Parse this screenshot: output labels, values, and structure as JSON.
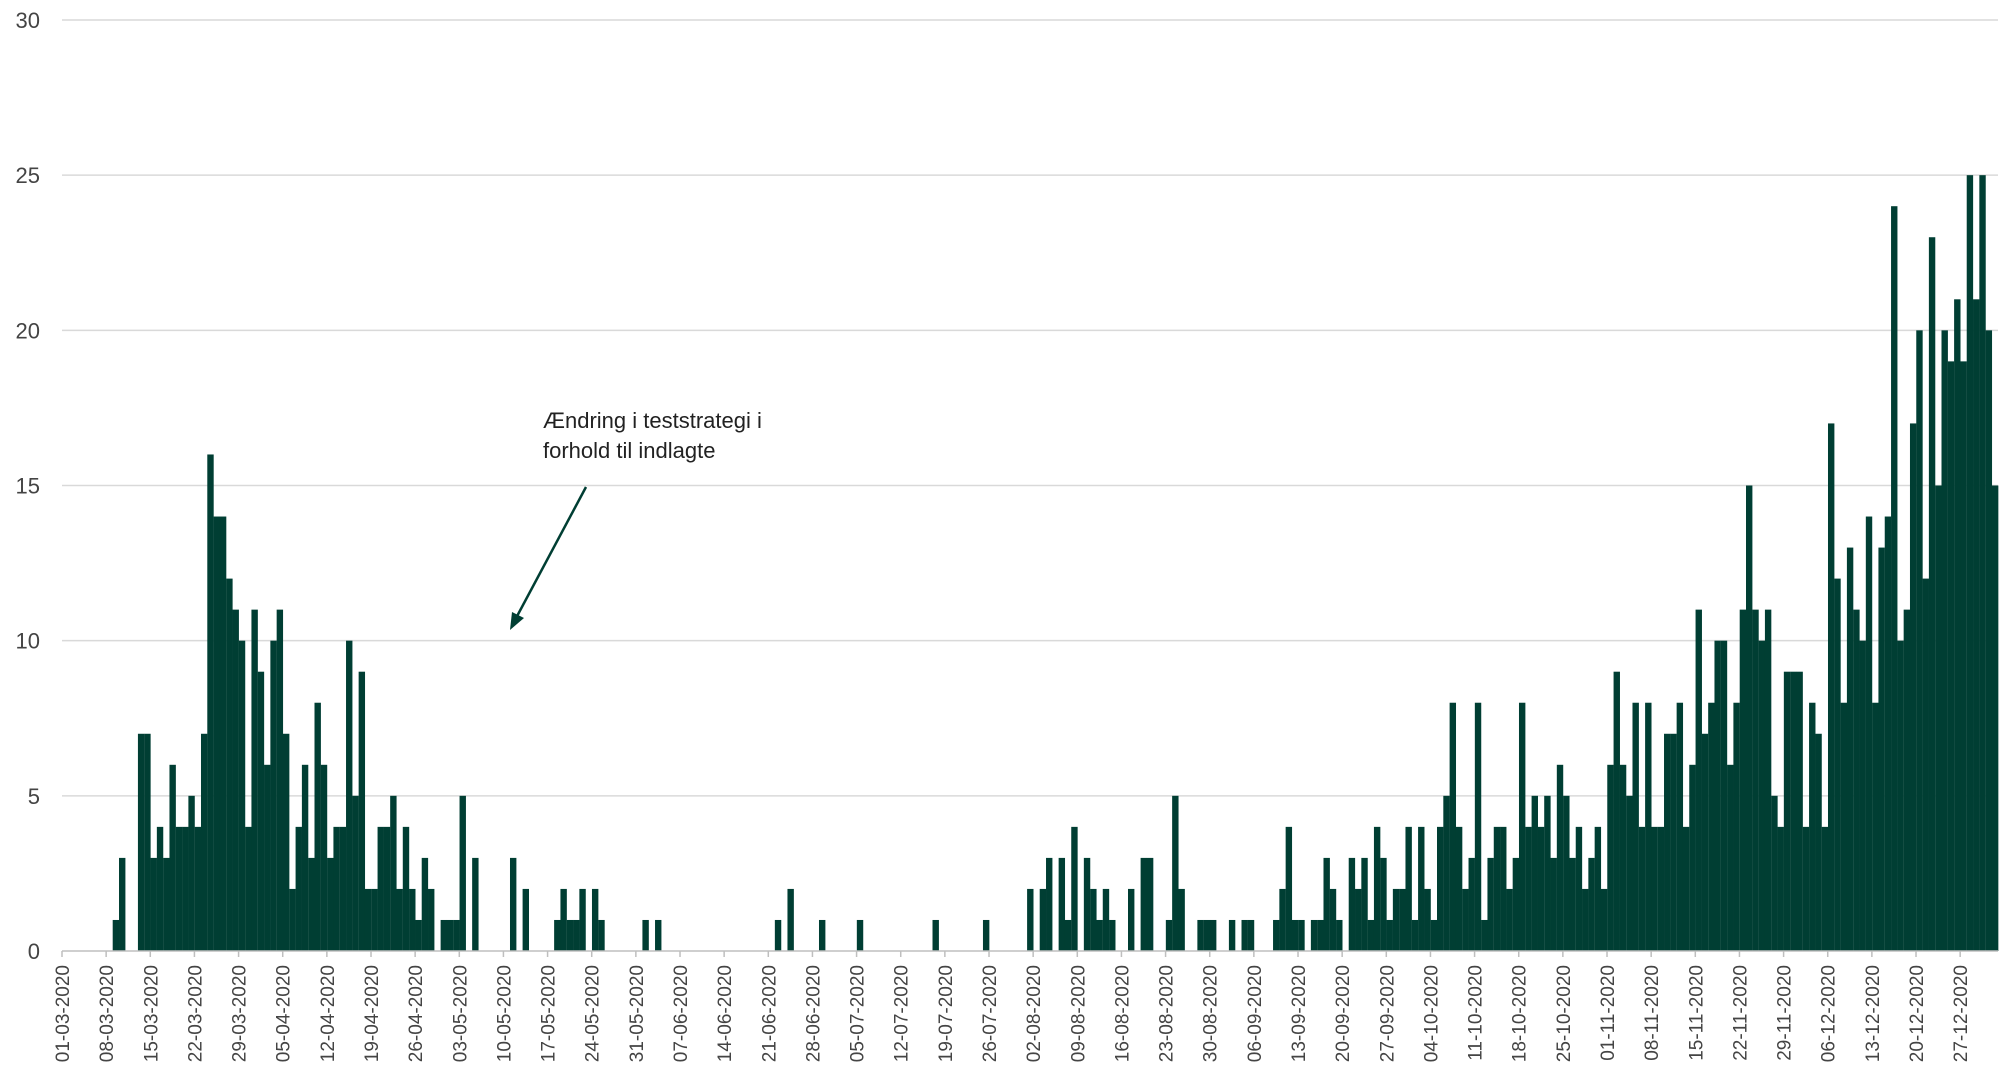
{
  "chart_data": {
    "type": "bar",
    "title": "",
    "xlabel": "",
    "ylabel": "",
    "ylim": [
      0,
      30
    ],
    "yticks": [
      "0",
      "5",
      "10",
      "15",
      "20",
      "25",
      "30"
    ],
    "grid": true,
    "legend": "none",
    "colors": {
      "bar": "#003e33",
      "grid": "#d9d9d9",
      "axis": "#bfbfbf",
      "text": "#444444"
    },
    "annotation": {
      "lines": [
        "Ændring i teststrategi i",
        "forhold til indlagte"
      ],
      "points_to": "10-05-2020"
    },
    "start_date": "01-03-2020",
    "xtick_labels": [
      "01-03-2020",
      "08-03-2020",
      "15-03-2020",
      "22-03-2020",
      "29-03-2020",
      "05-04-2020",
      "12-04-2020",
      "19-04-2020",
      "26-04-2020",
      "03-05-2020",
      "10-05-2020",
      "17-05-2020",
      "24-05-2020",
      "31-05-2020",
      "07-06-2020",
      "14-06-2020",
      "21-06-2020",
      "28-06-2020",
      "05-07-2020",
      "12-07-2020",
      "19-07-2020",
      "26-07-2020",
      "02-08-2020",
      "09-08-2020",
      "16-08-2020",
      "23-08-2020",
      "30-08-2020",
      "06-09-2020",
      "13-09-2020",
      "20-09-2020",
      "27-09-2020",
      "04-10-2020",
      "11-10-2020",
      "18-10-2020",
      "25-10-2020",
      "01-11-2020",
      "08-11-2020",
      "15-11-2020",
      "22-11-2020",
      "29-11-2020",
      "06-12-2020",
      "13-12-2020",
      "20-12-2020",
      "27-12-2020"
    ],
    "values": [
      0,
      0,
      0,
      0,
      0,
      0,
      0,
      0,
      1,
      3,
      0,
      0,
      7,
      7,
      3,
      4,
      3,
      6,
      4,
      4,
      5,
      4,
      7,
      16,
      14,
      14,
      12,
      11,
      10,
      4,
      11,
      9,
      6,
      10,
      11,
      7,
      2,
      4,
      6,
      3,
      8,
      6,
      3,
      4,
      4,
      10,
      5,
      9,
      2,
      2,
      4,
      4,
      5,
      2,
      4,
      2,
      1,
      3,
      2,
      0,
      1,
      1,
      1,
      5,
      0,
      3,
      0,
      0,
      0,
      0,
      0,
      3,
      0,
      2,
      0,
      0,
      0,
      0,
      1,
      2,
      1,
      1,
      2,
      0,
      2,
      1,
      0,
      0,
      0,
      0,
      0,
      0,
      1,
      0,
      1,
      0,
      0,
      0,
      0,
      0,
      0,
      0,
      0,
      0,
      0,
      0,
      0,
      0,
      0,
      0,
      0,
      0,
      0,
      1,
      0,
      2,
      0,
      0,
      0,
      0,
      1,
      0,
      0,
      0,
      0,
      0,
      1,
      0,
      0,
      0,
      0,
      0,
      0,
      0,
      0,
      0,
      0,
      0,
      1,
      0,
      0,
      0,
      0,
      0,
      0,
      0,
      1,
      0,
      0,
      0,
      0,
      0,
      0,
      2,
      0,
      2,
      3,
      0,
      3,
      1,
      4,
      0,
      3,
      2,
      1,
      2,
      1,
      0,
      0,
      2,
      0,
      3,
      3,
      0,
      0,
      1,
      5,
      2,
      0,
      0,
      1,
      1,
      1,
      0,
      0,
      1,
      0,
      1,
      1,
      0,
      0,
      0,
      1,
      2,
      4,
      1,
      1,
      0,
      1,
      1,
      3,
      2,
      1,
      0,
      3,
      2,
      3,
      1,
      4,
      3,
      1,
      2,
      2,
      4,
      1,
      4,
      2,
      1,
      4,
      5,
      8,
      4,
      2,
      3,
      8,
      1,
      3,
      4,
      4,
      2,
      3,
      8,
      4,
      5,
      4,
      5,
      3,
      6,
      5,
      3,
      4,
      2,
      3,
      4,
      2,
      6,
      9,
      6,
      5,
      8,
      4,
      8,
      4,
      4,
      7,
      7,
      8,
      4,
      6,
      11,
      7,
      8,
      10,
      10,
      6,
      8,
      11,
      15,
      11,
      10,
      11,
      5,
      4,
      9,
      9,
      9,
      4,
      8,
      7,
      4,
      17,
      12,
      8,
      13,
      11,
      10,
      14,
      8,
      13,
      14,
      24,
      10,
      11,
      17,
      20,
      12,
      23,
      15,
      20,
      19,
      21,
      19,
      25,
      21,
      25,
      20,
      15
    ]
  }
}
